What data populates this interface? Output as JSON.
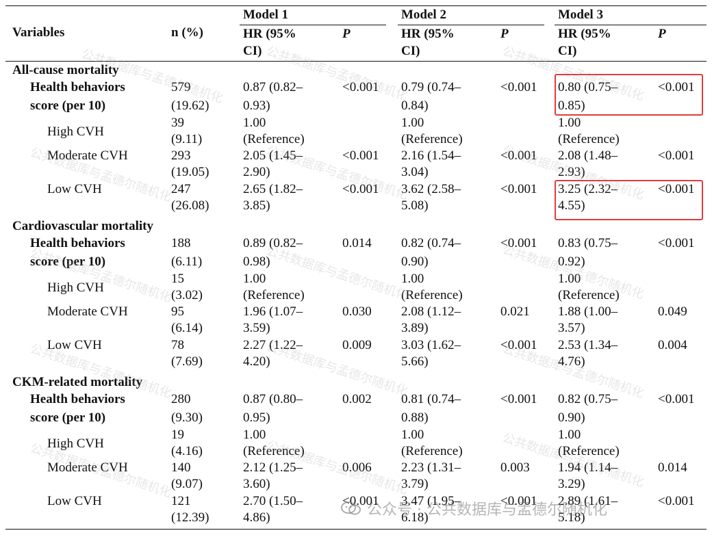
{
  "watermark": "公共数据库与孟德尔随机化",
  "footer_label": "公众号 · 公共数据库与孟德尔随机化",
  "colors": {
    "highlight": "#e23a3a",
    "rule": "#111111"
  },
  "header": {
    "variables": "Variables",
    "n": "n (%)",
    "models": [
      "Model 1",
      "Model 2",
      "Model 3"
    ],
    "hr_line1": "HR (95%",
    "hr_line2": "CI)",
    "p": "P"
  },
  "rows": [
    {
      "label": "All-cause mortality",
      "kind": "section"
    },
    {
      "label": [
        "Health behaviors",
        "score (per 10)"
      ],
      "kind": "score",
      "n": [
        "579",
        "(19.62)"
      ],
      "m": [
        [
          "0.87 (0.82–",
          "0.93)",
          "<0.001"
        ],
        [
          "0.79 (0.74–",
          "0.84)",
          "<0.001"
        ],
        [
          "0.80 (0.75–",
          "0.85)",
          "<0.001"
        ]
      ]
    },
    {
      "label": "High CVH",
      "kind": "sub",
      "n": [
        "39",
        "(9.11)"
      ],
      "m": [
        [
          "1.00",
          "(Reference)",
          ""
        ],
        [
          "1.00",
          "(Reference)",
          ""
        ],
        [
          "1.00",
          "(Reference)",
          ""
        ]
      ]
    },
    {
      "label": "Moderate CVH",
      "kind": "sub",
      "n": [
        "293",
        "(19.05)"
      ],
      "m": [
        [
          "2.05 (1.45–",
          "2.90)",
          "<0.001"
        ],
        [
          "2.16 (1.54–",
          "3.04)",
          "<0.001"
        ],
        [
          "2.08 (1.48–",
          "2.93)",
          "<0.001"
        ]
      ]
    },
    {
      "label": "Low CVH",
      "kind": "sub",
      "n": [
        "247",
        "(26.08)"
      ],
      "m": [
        [
          "2.65 (1.82–",
          "3.85)",
          "<0.001"
        ],
        [
          "3.62 (2.58–",
          "5.08)",
          "<0.001"
        ],
        [
          "3.25 (2.32–",
          "4.55)",
          "<0.001"
        ]
      ]
    },
    {
      "label": "Cardiovascular mortality",
      "kind": "section"
    },
    {
      "label": [
        "Health behaviors",
        "score (per 10)"
      ],
      "kind": "score",
      "n": [
        "188",
        "(6.11)"
      ],
      "m": [
        [
          "0.89 (0.82–",
          "0.98)",
          "0.014"
        ],
        [
          "0.82 (0.74–",
          "0.90)",
          "<0.001"
        ],
        [
          "0.83 (0.75–",
          "0.92)",
          "<0.001"
        ]
      ]
    },
    {
      "label": "High CVH",
      "kind": "sub",
      "n": [
        "15",
        "(3.02)"
      ],
      "m": [
        [
          "1.00",
          "(Reference)",
          ""
        ],
        [
          "1.00",
          "(Reference)",
          ""
        ],
        [
          "1.00",
          "(Reference)",
          ""
        ]
      ]
    },
    {
      "label": "Moderate CVH",
      "kind": "sub",
      "n": [
        "95",
        "(6.14)"
      ],
      "m": [
        [
          "1.96 (1.07–",
          "3.59)",
          "0.030"
        ],
        [
          "2.08 (1.12–",
          "3.89)",
          "0.021"
        ],
        [
          "1.88 (1.00–",
          "3.57)",
          "0.049"
        ]
      ]
    },
    {
      "label": "Low CVH",
      "kind": "sub",
      "n": [
        "78",
        "(7.69)"
      ],
      "m": [
        [
          "2.27 (1.22–",
          "4.20)",
          "0.009"
        ],
        [
          "3.03 (1.62–",
          "5.66)",
          "<0.001"
        ],
        [
          "2.53 (1.34–",
          "4.76)",
          "0.004"
        ]
      ]
    },
    {
      "label": "CKM-related mortality",
      "kind": "section"
    },
    {
      "label": [
        "Health behaviors",
        "score (per 10)"
      ],
      "kind": "score",
      "n": [
        "280",
        "(9.30)"
      ],
      "m": [
        [
          "0.87 (0.80–",
          "0.95)",
          "0.002"
        ],
        [
          "0.81 (0.74–",
          "0.88)",
          "<0.001"
        ],
        [
          "0.82 (0.75–",
          "0.90)",
          "<0.001"
        ]
      ]
    },
    {
      "label": "High CVH",
      "kind": "sub",
      "n": [
        "19",
        "(4.16)"
      ],
      "m": [
        [
          "1.00",
          "(Reference)",
          ""
        ],
        [
          "1.00",
          "(Reference)",
          ""
        ],
        [
          "1.00",
          "(Reference)",
          ""
        ]
      ]
    },
    {
      "label": "Moderate CVH",
      "kind": "sub",
      "n": [
        "140",
        "(9.07)"
      ],
      "m": [
        [
          "2.12 (1.25–",
          "3.60)",
          "0.006"
        ],
        [
          "2.23 (1.31–",
          "3.79)",
          "0.003"
        ],
        [
          "1.94 (1.14–",
          "3.29)",
          "0.014"
        ]
      ]
    },
    {
      "label": "Low CVH",
      "kind": "sub",
      "n": [
        "121",
        "(12.39)"
      ],
      "m": [
        [
          "2.70 (1.50–",
          "4.86)",
          "<0.001"
        ],
        [
          "3.47 (1.95–",
          "6.18)",
          "<0.001"
        ],
        [
          "2.89 (1.61–",
          "5.18)",
          "<0.001"
        ]
      ]
    }
  ]
}
